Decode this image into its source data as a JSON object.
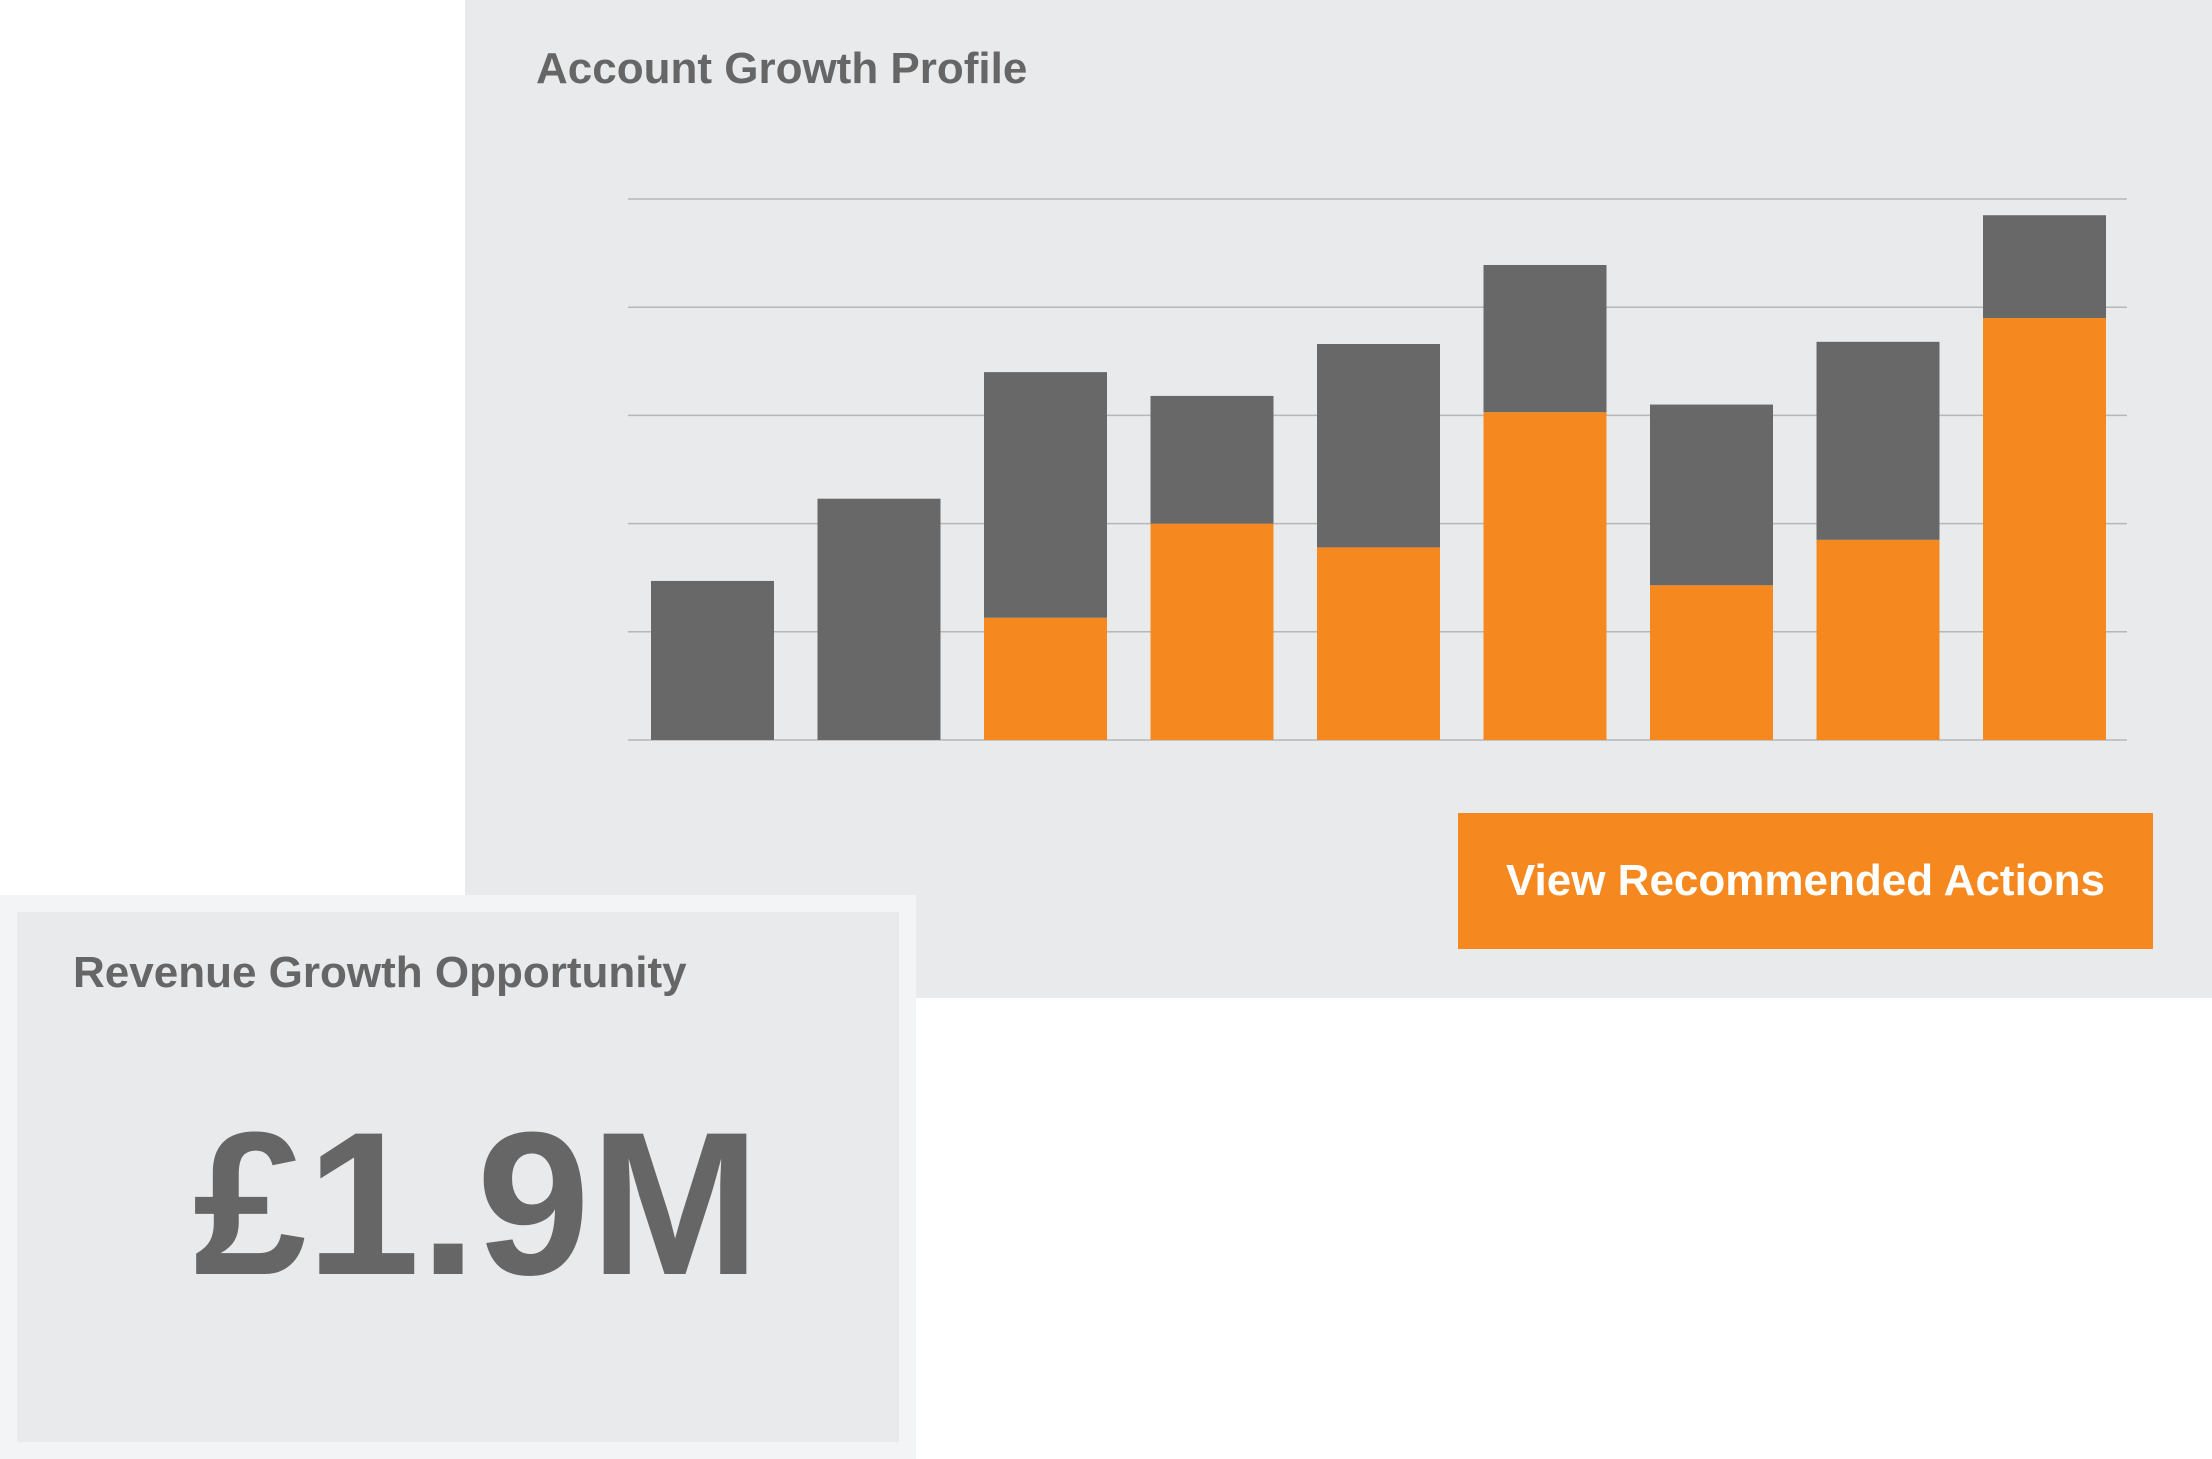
{
  "chart_panel": {
    "title": "Account Growth Profile",
    "button_label": "View Recommended Actions"
  },
  "kpi": {
    "label": "Revenue Growth Opportunity",
    "value": "£1.9M"
  },
  "colors": {
    "panel_bg": "#e9eaeb",
    "dark_series": "#686868",
    "orange_series": "#f5891f",
    "grid": "#b7b7b7",
    "text": "#666666"
  },
  "chart_data": {
    "type": "bar",
    "stacked": true,
    "title": "Account Growth Profile",
    "xlabel": "",
    "ylabel": "",
    "ylim": [
      0,
      5
    ],
    "grid": true,
    "legend": "none",
    "categories": [
      "",
      "",
      "",
      "",
      "",
      "",
      "",
      "",
      ""
    ],
    "series": [
      {
        "color": "#f5891f",
        "values": [
          0,
          0,
          1.13,
          2.0,
          1.78,
          3.03,
          1.43,
          1.85,
          3.9
        ]
      },
      {
        "color": "#686868",
        "values": [
          1.47,
          2.23,
          2.27,
          1.18,
          1.88,
          1.36,
          1.67,
          1.83,
          0.95
        ]
      }
    ]
  }
}
